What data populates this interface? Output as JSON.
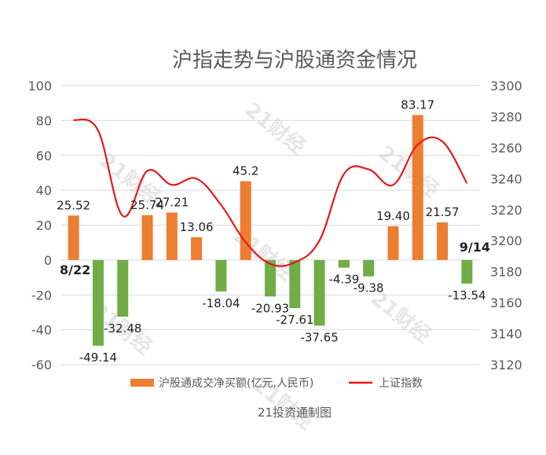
{
  "chart_data": {
    "type": "bar",
    "title": "沪指走势与沪股通资金情况",
    "source_note": "21投资通制图",
    "watermark": "21财经",
    "categories": [
      "8/22",
      "",
      "",
      "",
      "",
      "",
      "",
      "",
      "",
      "",
      "",
      "",
      "",
      "",
      "",
      "",
      "9/14"
    ],
    "visible_category_labels": [
      {
        "index": 0,
        "label": "8/22"
      },
      {
        "index": 16,
        "label": "9/14"
      }
    ],
    "series": [
      {
        "name": "沪股通成交净买额(亿元,人民币)",
        "type": "bar",
        "axis": "left",
        "values": [
          25.52,
          -49.14,
          -32.48,
          25.74,
          27.21,
          13.06,
          -18.04,
          45.2,
          -20.93,
          -27.61,
          -37.65,
          -4.39,
          -9.38,
          19.4,
          83.17,
          21.57,
          -13.54
        ],
        "labels": [
          "25.52",
          "-49.14",
          "-32.48",
          "25.74",
          "27.21",
          "13.06",
          "-18.04",
          "45.2",
          "-20.93",
          "-27.61",
          "-37.65",
          "-4.39",
          "-9.38",
          "19.40",
          "83.17",
          "21.57",
          "-13.54"
        ],
        "color_positive": "#ed7d31",
        "color_negative": "#70ad47"
      },
      {
        "name": "上证指数",
        "type": "line",
        "axis": "right",
        "values": [
          3278,
          3271,
          3216,
          3245,
          3236,
          3240,
          3223,
          3199,
          3185,
          3186,
          3200,
          3243,
          3246,
          3236,
          3262,
          3264,
          3237
        ],
        "color": "#e31a1c"
      }
    ],
    "y_left": {
      "min": -60,
      "max": 100,
      "ticks": [
        100,
        80,
        60,
        40,
        20,
        0,
        -20,
        -40,
        -60
      ]
    },
    "y_right": {
      "min": 3120,
      "max": 3300,
      "ticks": [
        3300,
        3280,
        3260,
        3240,
        3220,
        3200,
        3180,
        3160,
        3140,
        3120
      ]
    },
    "grid": true,
    "legend_position": "bottom"
  }
}
